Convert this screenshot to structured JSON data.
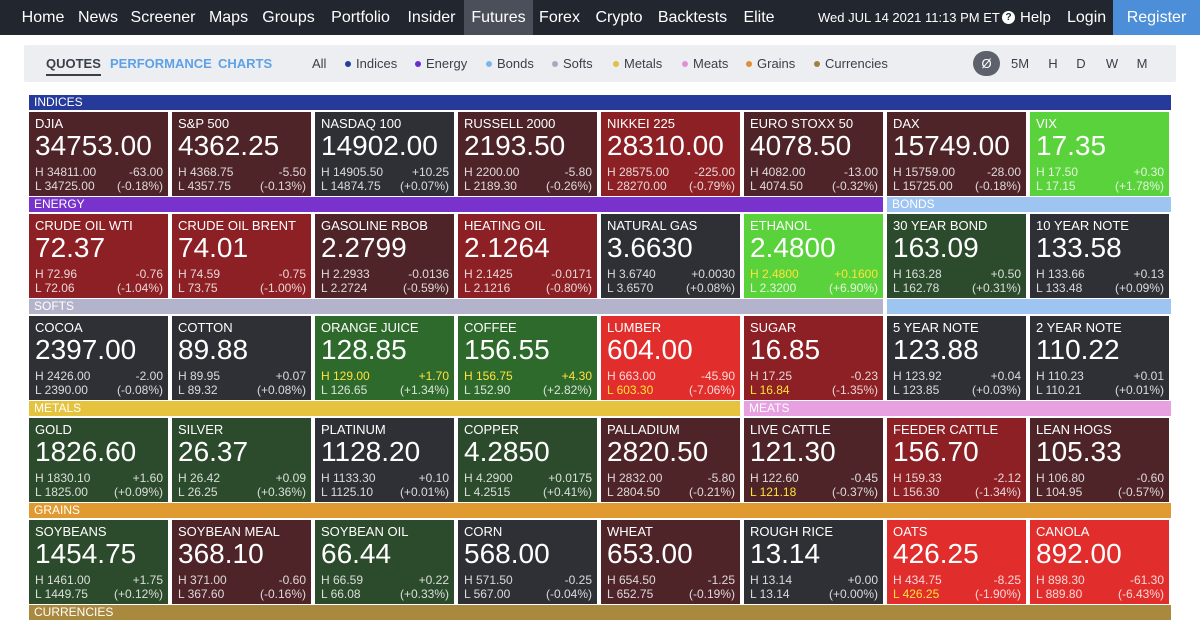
{
  "nav": {
    "items": [
      "Home",
      "News",
      "Screener",
      "Maps",
      "Groups",
      "Portfolio",
      "Insider",
      "Futures",
      "Forex",
      "Crypto",
      "Backtests",
      "Elite"
    ],
    "active": "Futures",
    "datetime": "Wed JUL 14 2021 11:13 PM ET",
    "help": "Help",
    "login": "Login",
    "register": "Register"
  },
  "subtabs": [
    "QUOTES",
    "PERFORMANCE",
    "CHARTS"
  ],
  "filters": [
    {
      "label": "All",
      "color": ""
    },
    {
      "label": "Indices",
      "color": "#1f3fa0"
    },
    {
      "label": "Energy",
      "color": "#6a2bd4"
    },
    {
      "label": "Bonds",
      "color": "#7fb2f0"
    },
    {
      "label": "Softs",
      "color": "#a8a8c0"
    },
    {
      "label": "Metals",
      "color": "#e0c040"
    },
    {
      "label": "Meats",
      "color": "#e090d8"
    },
    {
      "label": "Grains",
      "color": "#e09030"
    },
    {
      "label": "Currencies",
      "color": "#a08040"
    }
  ],
  "timeframes": [
    "Ø",
    "5M",
    "H",
    "D",
    "W",
    "M"
  ],
  "colors": {
    "indices": "#263a9a",
    "energy": "#7a32cc",
    "bonds": "#9ec4f2",
    "softs": "#b3b4cc",
    "metals": "#e6c33f",
    "meats": "#e7a0e0",
    "grains": "#e19a2f",
    "currencies": "#a8893e",
    "dark": "#2e3036",
    "dark_red": "#4e2428",
    "red": "#8c2024",
    "bright_red": "#e12d2b",
    "dark_green": "#2c4a2c",
    "green": "#2f6a2d",
    "bright_green": "#5ad23c"
  },
  "sections": {
    "indices": "INDICES",
    "energy": "ENERGY",
    "bonds": "BONDS",
    "softs": "SOFTS",
    "metals": "METALS",
    "meats": "MEATS",
    "grains": "GRAINS",
    "currencies": "CURRENCIES"
  },
  "rows": [
    [
      {
        "name": "DJIA",
        "price": "34753.00",
        "high": "34811.00",
        "low": "34725.00",
        "change": "-63.00",
        "pct": "(-0.18%)",
        "tone": "dark_red"
      },
      {
        "name": "S&P 500",
        "price": "4362.25",
        "high": "4368.75",
        "low": "4357.75",
        "change": "-5.50",
        "pct": "(-0.13%)",
        "tone": "dark_red"
      },
      {
        "name": "NASDAQ 100",
        "price": "14902.00",
        "high": "14905.50",
        "low": "14874.75",
        "change": "+10.25",
        "pct": "(+0.07%)",
        "tone": "dark"
      },
      {
        "name": "RUSSELL 2000",
        "price": "2193.50",
        "high": "2200.00",
        "low": "2189.30",
        "change": "-5.80",
        "pct": "(-0.26%)",
        "tone": "dark_red"
      },
      {
        "name": "NIKKEI 225",
        "price": "28310.00",
        "high": "28575.00",
        "low": "28270.00",
        "change": "-225.00",
        "pct": "(-0.79%)",
        "tone": "red"
      },
      {
        "name": "EURO STOXX 50",
        "price": "4078.50",
        "high": "4082.00",
        "low": "4074.50",
        "change": "-13.00",
        "pct": "(-0.32%)",
        "tone": "dark_red"
      },
      {
        "name": "DAX",
        "price": "15749.00",
        "high": "15759.00",
        "low": "15725.00",
        "change": "-28.00",
        "pct": "(-0.18%)",
        "tone": "dark_red"
      },
      {
        "name": "VIX",
        "price": "17.35",
        "high": "17.50",
        "low": "17.15",
        "change": "+0.30",
        "pct": "(+1.78%)",
        "tone": "bright_green"
      }
    ],
    [
      {
        "name": "CRUDE OIL WTI",
        "price": "72.37",
        "high": "72.96",
        "low": "72.06",
        "change": "-0.76",
        "pct": "(-1.04%)",
        "tone": "red"
      },
      {
        "name": "CRUDE OIL BRENT",
        "price": "74.01",
        "high": "74.59",
        "low": "73.75",
        "change": "-0.75",
        "pct": "(-1.00%)",
        "tone": "red"
      },
      {
        "name": "GASOLINE RBOB",
        "price": "2.2799",
        "high": "2.2933",
        "low": "2.2724",
        "change": "-0.0136",
        "pct": "(-0.59%)",
        "tone": "dark_red"
      },
      {
        "name": "HEATING OIL",
        "price": "2.1264",
        "high": "2.1425",
        "low": "2.1216",
        "change": "-0.0171",
        "pct": "(-0.80%)",
        "tone": "red"
      },
      {
        "name": "NATURAL GAS",
        "price": "3.6630",
        "high": "3.6740",
        "low": "3.6570",
        "change": "+0.0030",
        "pct": "(+0.08%)",
        "tone": "dark"
      },
      {
        "name": "ETHANOL",
        "price": "2.4800",
        "high": "2.4800",
        "low": "2.3200",
        "change": "+0.1600",
        "pct": "(+6.90%)",
        "tone": "bright_green",
        "hi_yellow": true
      },
      {
        "name": "30 YEAR BOND",
        "price": "163.09",
        "high": "163.28",
        "low": "162.78",
        "change": "+0.50",
        "pct": "(+0.31%)",
        "tone": "dark_green"
      },
      {
        "name": "10 YEAR NOTE",
        "price": "133.58",
        "high": "133.66",
        "low": "133.48",
        "change": "+0.13",
        "pct": "(+0.09%)",
        "tone": "dark"
      }
    ],
    [
      {
        "name": "COCOA",
        "price": "2397.00",
        "high": "2426.00",
        "low": "2390.00",
        "change": "-2.00",
        "pct": "(-0.08%)",
        "tone": "dark"
      },
      {
        "name": "COTTON",
        "price": "89.88",
        "high": "89.95",
        "low": "89.32",
        "change": "+0.07",
        "pct": "(+0.08%)",
        "tone": "dark"
      },
      {
        "name": "ORANGE JUICE",
        "price": "128.85",
        "high": "129.00",
        "low": "126.65",
        "change": "+1.70",
        "pct": "(+1.34%)",
        "tone": "green",
        "hi_yellow": true
      },
      {
        "name": "COFFEE",
        "price": "156.55",
        "high": "156.75",
        "low": "152.90",
        "change": "+4.30",
        "pct": "(+2.82%)",
        "tone": "green",
        "hi_yellow": true
      },
      {
        "name": "LUMBER",
        "price": "604.00",
        "high": "663.00",
        "low": "603.30",
        "change": "-45.90",
        "pct": "(-7.06%)",
        "tone": "bright_red",
        "lo_yellow": true
      },
      {
        "name": "SUGAR",
        "price": "16.85",
        "high": "17.25",
        "low": "16.84",
        "change": "-0.23",
        "pct": "(-1.35%)",
        "tone": "red",
        "lo_yellow": true
      },
      {
        "name": "5 YEAR NOTE",
        "price": "123.88",
        "high": "123.92",
        "low": "123.85",
        "change": "+0.04",
        "pct": "(+0.03%)",
        "tone": "dark"
      },
      {
        "name": "2 YEAR NOTE",
        "price": "110.22",
        "high": "110.23",
        "low": "110.21",
        "change": "+0.01",
        "pct": "(+0.01%)",
        "tone": "dark"
      }
    ],
    [
      {
        "name": "GOLD",
        "price": "1826.60",
        "high": "1830.10",
        "low": "1825.00",
        "change": "+1.60",
        "pct": "(+0.09%)",
        "tone": "dark_green"
      },
      {
        "name": "SILVER",
        "price": "26.37",
        "high": "26.42",
        "low": "26.25",
        "change": "+0.09",
        "pct": "(+0.36%)",
        "tone": "dark_green"
      },
      {
        "name": "PLATINUM",
        "price": "1128.20",
        "high": "1133.30",
        "low": "1125.10",
        "change": "+0.10",
        "pct": "(+0.01%)",
        "tone": "dark"
      },
      {
        "name": "COPPER",
        "price": "4.2850",
        "high": "4.2900",
        "low": "4.2515",
        "change": "+0.0175",
        "pct": "(+0.41%)",
        "tone": "dark_green"
      },
      {
        "name": "PALLADIUM",
        "price": "2820.50",
        "high": "2832.00",
        "low": "2804.50",
        "change": "-5.80",
        "pct": "(-0.21%)",
        "tone": "dark_red"
      },
      {
        "name": "LIVE CATTLE",
        "price": "121.30",
        "high": "122.60",
        "low": "121.18",
        "change": "-0.45",
        "pct": "(-0.37%)",
        "tone": "dark_red",
        "lo_yellow": true
      },
      {
        "name": "FEEDER CATTLE",
        "price": "156.70",
        "high": "159.33",
        "low": "156.30",
        "change": "-2.12",
        "pct": "(-1.34%)",
        "tone": "red"
      },
      {
        "name": "LEAN HOGS",
        "price": "105.33",
        "high": "106.80",
        "low": "104.95",
        "change": "-0.60",
        "pct": "(-0.57%)",
        "tone": "dark_red"
      }
    ],
    [
      {
        "name": "SOYBEANS",
        "price": "1454.75",
        "high": "1461.00",
        "low": "1449.75",
        "change": "+1.75",
        "pct": "(+0.12%)",
        "tone": "dark_green"
      },
      {
        "name": "SOYBEAN MEAL",
        "price": "368.10",
        "high": "371.00",
        "low": "367.60",
        "change": "-0.60",
        "pct": "(-0.16%)",
        "tone": "dark_red"
      },
      {
        "name": "SOYBEAN OIL",
        "price": "66.44",
        "high": "66.59",
        "low": "66.08",
        "change": "+0.22",
        "pct": "(+0.33%)",
        "tone": "dark_green"
      },
      {
        "name": "CORN",
        "price": "568.00",
        "high": "571.50",
        "low": "567.00",
        "change": "-0.25",
        "pct": "(-0.04%)",
        "tone": "dark"
      },
      {
        "name": "WHEAT",
        "price": "653.00",
        "high": "654.50",
        "low": "652.75",
        "change": "-1.25",
        "pct": "(-0.19%)",
        "tone": "dark_red"
      },
      {
        "name": "ROUGH RICE",
        "price": "13.14",
        "high": "13.14",
        "low": "13.14",
        "change": "+0.00",
        "pct": "(+0.00%)",
        "tone": "dark"
      },
      {
        "name": "OATS",
        "price": "426.25",
        "high": "434.75",
        "low": "426.25",
        "change": "-8.25",
        "pct": "(-1.90%)",
        "tone": "bright_red",
        "lo_yellow": true
      },
      {
        "name": "CANOLA",
        "price": "892.00",
        "high": "898.30",
        "low": "889.80",
        "change": "-61.30",
        "pct": "(-6.43%)",
        "tone": "bright_red"
      }
    ]
  ]
}
